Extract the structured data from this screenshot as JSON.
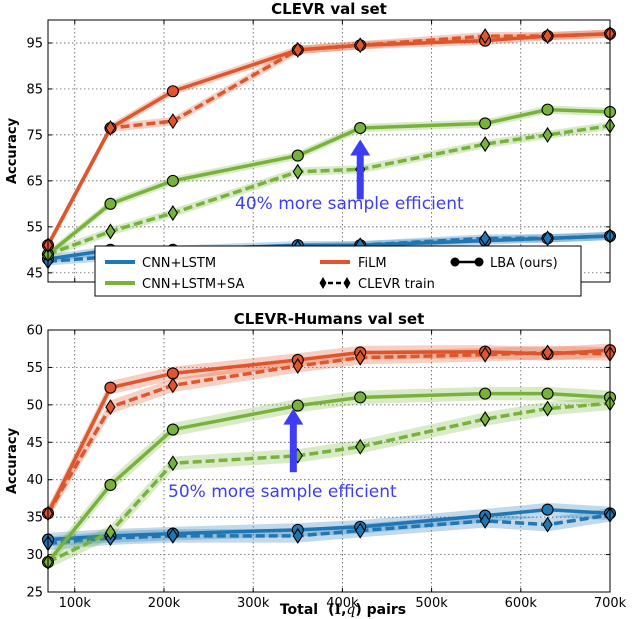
{
  "colors": {
    "cnn_lstm": "#1f77b4",
    "cnn_lstm_sa": "#77b23b",
    "film": "#e0552b",
    "arrow": "#3d3df5"
  },
  "x_axis": {
    "label_prefix": "Total",
    "label_mid": "(",
    "label_I": "I",
    "label_sep": ",",
    "label_q": "q",
    "label_suffix": ") pairs",
    "ticks": [
      100000,
      200000,
      300000,
      400000,
      500000,
      600000,
      700000
    ],
    "tick_labels": [
      "100k",
      "200k",
      "300k",
      "400k",
      "500k",
      "600k",
      "700k"
    ],
    "lim": [
      70000,
      700000
    ]
  },
  "legend": {
    "entries": [
      "CNN+LSTM",
      "FiLM",
      "LBA (ours)",
      "CNN+LSTM+SA",
      "CLEVR train"
    ],
    "placement": "between panels"
  },
  "chart_data": [
    {
      "type": "line",
      "title": "CLEVR val set",
      "ylabel": "Accuracy",
      "ylim": [
        43,
        100
      ],
      "yticks": [
        45,
        55,
        65,
        75,
        85,
        95
      ],
      "grid": true,
      "annotation": "40% more sample efficient",
      "annotation_arrow": {
        "x": 420000,
        "y_from": 61,
        "y_to": 74
      },
      "series": [
        {
          "model": "CNN+LSTM",
          "method": "LBA (ours)",
          "x": [
            70000,
            140000,
            210000,
            350000,
            420000,
            560000,
            630000,
            700000
          ],
          "y": [
            48,
            50,
            50,
            51,
            51,
            52,
            52.5,
            53
          ]
        },
        {
          "model": "CNN+LSTM",
          "method": "CLEVR train",
          "x": [
            70000,
            140000,
            210000,
            350000,
            420000,
            560000,
            630000,
            700000
          ],
          "y": [
            47.5,
            48.5,
            49.5,
            50.5,
            51,
            52.5,
            52.5,
            53
          ]
        },
        {
          "model": "CNN+LSTM+SA",
          "method": "LBA (ours)",
          "x": [
            70000,
            140000,
            210000,
            350000,
            420000,
            560000,
            630000,
            700000
          ],
          "y": [
            49,
            60,
            65,
            70.5,
            76.5,
            77.5,
            80.5,
            80
          ]
        },
        {
          "model": "CNN+LSTM+SA",
          "method": "CLEVR train",
          "x": [
            70000,
            140000,
            210000,
            350000,
            420000,
            560000,
            630000,
            700000
          ],
          "y": [
            49,
            54,
            58,
            67,
            67.5,
            73,
            75,
            77
          ]
        },
        {
          "model": "FiLM",
          "method": "LBA (ours)",
          "x": [
            70000,
            140000,
            210000,
            350000,
            420000,
            560000,
            630000,
            700000
          ],
          "y": [
            51,
            76.5,
            84.5,
            93.5,
            94.5,
            95.5,
            96.5,
            97
          ]
        },
        {
          "model": "FiLM",
          "method": "CLEVR train",
          "x": [
            70000,
            140000,
            210000,
            350000,
            420000,
            560000,
            630000,
            700000
          ],
          "y": [
            51,
            76.5,
            78,
            93.5,
            94.5,
            96.5,
            96.5,
            97
          ]
        }
      ]
    },
    {
      "type": "line",
      "title": "CLEVR-Humans val set",
      "ylabel": "Accuracy",
      "ylim": [
        25,
        60
      ],
      "yticks": [
        25,
        30,
        35,
        40,
        45,
        50,
        55,
        60
      ],
      "grid": true,
      "annotation": "50% more sample efficient",
      "annotation_arrow": {
        "x": 345000,
        "y_from": 41,
        "y_to": 49.5
      },
      "series": [
        {
          "model": "CNN+LSTM",
          "method": "LBA (ours)",
          "x": [
            70000,
            140000,
            210000,
            350000,
            420000,
            560000,
            630000,
            700000
          ],
          "y": [
            32,
            32.5,
            32.8,
            33.3,
            33.7,
            35.2,
            36,
            35.5
          ]
        },
        {
          "model": "CNN+LSTM",
          "method": "CLEVR train",
          "x": [
            70000,
            140000,
            210000,
            350000,
            420000,
            560000,
            630000,
            700000
          ],
          "y": [
            31.5,
            32.2,
            32.5,
            32.5,
            33.2,
            34.5,
            34,
            35.3
          ]
        },
        {
          "model": "CNN+LSTM+SA",
          "method": "LBA (ours)",
          "x": [
            70000,
            140000,
            210000,
            350000,
            420000,
            560000,
            630000,
            700000
          ],
          "y": [
            29,
            39.3,
            46.7,
            49.9,
            51,
            51.5,
            51.5,
            51
          ]
        },
        {
          "model": "CNN+LSTM+SA",
          "method": "CLEVR train",
          "x": [
            70000,
            140000,
            210000,
            350000,
            420000,
            560000,
            630000,
            700000
          ],
          "y": [
            29,
            33,
            42.2,
            43.2,
            44.4,
            48.1,
            49.5,
            50.2
          ]
        },
        {
          "model": "FiLM",
          "method": "LBA (ours)",
          "x": [
            70000,
            140000,
            210000,
            350000,
            420000,
            560000,
            630000,
            700000
          ],
          "y": [
            35.5,
            52.3,
            54.2,
            56,
            57,
            57.1,
            56.8,
            57.3
          ]
        },
        {
          "model": "FiLM",
          "method": "CLEVR train",
          "x": [
            70000,
            140000,
            210000,
            350000,
            420000,
            560000,
            630000,
            700000
          ],
          "y": [
            35.5,
            49.7,
            52.6,
            55.2,
            56.3,
            56.7,
            57,
            56.8
          ]
        }
      ]
    }
  ]
}
